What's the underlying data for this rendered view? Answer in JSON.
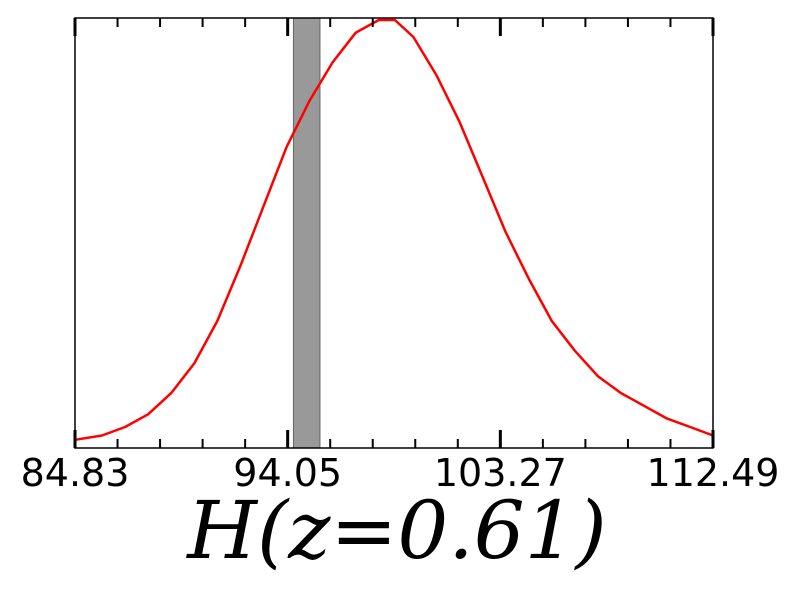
{
  "chart_data": {
    "type": "line",
    "xlabel": "H(z=0.61)",
    "ylabel": "",
    "xlim": [
      84.83,
      112.49
    ],
    "x_ticks": [
      84.83,
      94.05,
      103.27,
      112.49
    ],
    "x_tick_labels": [
      "84.83",
      "94.05",
      "103.27",
      "112.49"
    ],
    "grid": false,
    "shaded_band": {
      "x": [
        94.3,
        95.45
      ],
      "color": "#999999"
    },
    "series": [
      {
        "color": "#ff0000",
        "x": [
          84.83,
          86.0,
          87.0,
          88.0,
          89.0,
          90.0,
          91.0,
          92.0,
          93.0,
          94.0,
          95.0,
          96.0,
          97.0,
          98.0,
          98.7,
          99.5,
          100.5,
          101.5,
          102.5,
          103.5,
          104.5,
          105.5,
          106.5,
          107.5,
          108.5,
          109.5,
          110.5,
          111.5,
          112.49
        ],
        "y": [
          0.01,
          0.02,
          0.04,
          0.07,
          0.12,
          0.19,
          0.29,
          0.42,
          0.56,
          0.7,
          0.81,
          0.9,
          0.97,
          1.0,
          1.0,
          0.96,
          0.87,
          0.76,
          0.63,
          0.5,
          0.39,
          0.29,
          0.22,
          0.16,
          0.12,
          0.09,
          0.06,
          0.04,
          0.02
        ]
      }
    ]
  }
}
